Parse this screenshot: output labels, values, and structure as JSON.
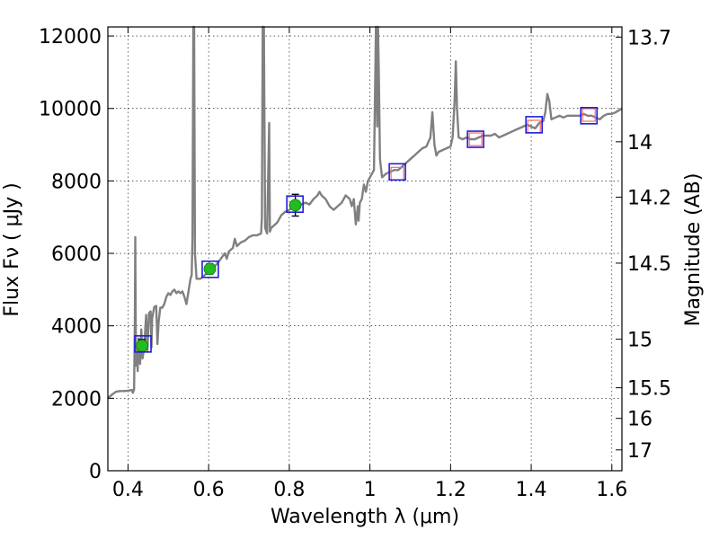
{
  "chart_data": {
    "type": "line",
    "xlabel": "Wavelength  λ (μm)",
    "ylabel_left": "Flux  Fν  ( μJy )",
    "ylabel_right": "Magnitude (AB)",
    "xlim": [
      0.35,
      1.625
    ],
    "ylim": [
      0,
      12250
    ],
    "grid": true,
    "x_ticks": [
      {
        "value": 0.4,
        "label": "0.4"
      },
      {
        "value": 0.6,
        "label": "0.6"
      },
      {
        "value": 0.8,
        "label": "0.8"
      },
      {
        "value": 1.0,
        "label": "1"
      },
      {
        "value": 1.2,
        "label": "1.2"
      },
      {
        "value": 1.4,
        "label": "1.4"
      },
      {
        "value": 1.6,
        "label": "1.6"
      }
    ],
    "y_ticks": [
      {
        "value": 0,
        "label": "0"
      },
      {
        "value": 2000,
        "label": "2000"
      },
      {
        "value": 4000,
        "label": "4000"
      },
      {
        "value": 6000,
        "label": "6000"
      },
      {
        "value": 8000,
        "label": "8000"
      },
      {
        "value": 10000,
        "label": "10000"
      },
      {
        "value": 12000,
        "label": "12000"
      }
    ],
    "right_ticks": [
      {
        "label": "13.7",
        "flux": 11970
      },
      {
        "label": "14",
        "flux": 9080
      },
      {
        "label": "14.2",
        "flux": 7550
      },
      {
        "label": "14.5",
        "flux": 5730
      },
      {
        "label": "15",
        "flux": 3630
      },
      {
        "label": "15.5",
        "flux": 2290
      },
      {
        "label": "16",
        "flux": 1445
      },
      {
        "label": "17",
        "flux": 575
      }
    ],
    "spectrum": {
      "color": "#808080",
      "points": [
        [
          0.35,
          2000
        ],
        [
          0.36,
          2100
        ],
        [
          0.37,
          2180
        ],
        [
          0.38,
          2200
        ],
        [
          0.39,
          2200
        ],
        [
          0.4,
          2210
        ],
        [
          0.41,
          2230
        ],
        [
          0.412,
          2150
        ],
        [
          0.415,
          2250
        ],
        [
          0.417,
          4300
        ],
        [
          0.418,
          6450
        ],
        [
          0.419,
          4100
        ],
        [
          0.42,
          2900
        ],
        [
          0.422,
          3500
        ],
        [
          0.424,
          2750
        ],
        [
          0.426,
          3650
        ],
        [
          0.43,
          2950
        ],
        [
          0.433,
          3900
        ],
        [
          0.436,
          3100
        ],
        [
          0.44,
          3400
        ],
        [
          0.445,
          4300
        ],
        [
          0.448,
          3300
        ],
        [
          0.452,
          4350
        ],
        [
          0.456,
          4400
        ],
        [
          0.458,
          3400
        ],
        [
          0.46,
          4200
        ],
        [
          0.465,
          4520
        ],
        [
          0.47,
          4550
        ],
        [
          0.473,
          3500
        ],
        [
          0.476,
          4100
        ],
        [
          0.48,
          4500
        ],
        [
          0.485,
          4500
        ],
        [
          0.49,
          4600
        ],
        [
          0.495,
          4800
        ],
        [
          0.5,
          4900
        ],
        [
          0.505,
          4850
        ],
        [
          0.51,
          4950
        ],
        [
          0.515,
          5000
        ],
        [
          0.52,
          4900
        ],
        [
          0.525,
          4950
        ],
        [
          0.53,
          4900
        ],
        [
          0.535,
          4950
        ],
        [
          0.54,
          4800
        ],
        [
          0.545,
          4600
        ],
        [
          0.55,
          4950
        ],
        [
          0.555,
          5300
        ],
        [
          0.558,
          5400
        ],
        [
          0.56,
          6500
        ],
        [
          0.562,
          12250
        ],
        [
          0.564,
          12250
        ],
        [
          0.566,
          6000
        ],
        [
          0.57,
          5300
        ],
        [
          0.58,
          5300
        ],
        [
          0.59,
          5400
        ],
        [
          0.6,
          5500
        ],
        [
          0.61,
          5600
        ],
        [
          0.62,
          5700
        ],
        [
          0.63,
          5850
        ],
        [
          0.64,
          6000
        ],
        [
          0.645,
          5850
        ],
        [
          0.65,
          6050
        ],
        [
          0.66,
          6150
        ],
        [
          0.665,
          6400
        ],
        [
          0.67,
          6200
        ],
        [
          0.68,
          6300
        ],
        [
          0.69,
          6350
        ],
        [
          0.7,
          6450
        ],
        [
          0.71,
          6500
        ],
        [
          0.72,
          6500
        ],
        [
          0.73,
          6550
        ],
        [
          0.732,
          7000
        ],
        [
          0.734,
          12250
        ],
        [
          0.737,
          12250
        ],
        [
          0.74,
          6700
        ],
        [
          0.745,
          6550
        ],
        [
          0.75,
          9600
        ],
        [
          0.752,
          6600
        ],
        [
          0.755,
          6700
        ],
        [
          0.76,
          6750
        ],
        [
          0.77,
          6850
        ],
        [
          0.78,
          7050
        ],
        [
          0.79,
          7150
        ],
        [
          0.8,
          7200
        ],
        [
          0.81,
          7300
        ],
        [
          0.82,
          7400
        ],
        [
          0.83,
          7350
        ],
        [
          0.84,
          7400
        ],
        [
          0.85,
          7350
        ],
        [
          0.86,
          7500
        ],
        [
          0.87,
          7600
        ],
        [
          0.875,
          7700
        ],
        [
          0.88,
          7600
        ],
        [
          0.89,
          7500
        ],
        [
          0.9,
          7300
        ],
        [
          0.91,
          7200
        ],
        [
          0.92,
          7300
        ],
        [
          0.93,
          7400
        ],
        [
          0.94,
          7600
        ],
        [
          0.95,
          7500
        ],
        [
          0.955,
          7300
        ],
        [
          0.96,
          7500
        ],
        [
          0.962,
          7200
        ],
        [
          0.965,
          6800
        ],
        [
          0.97,
          7300
        ],
        [
          0.972,
          6900
        ],
        [
          0.975,
          7400
        ],
        [
          0.98,
          7500
        ],
        [
          0.985,
          7900
        ],
        [
          0.99,
          7700
        ],
        [
          0.995,
          8000
        ],
        [
          1.0,
          8100
        ],
        [
          1.005,
          8200
        ],
        [
          1.01,
          8300
        ],
        [
          1.015,
          12250
        ],
        [
          1.018,
          9500
        ],
        [
          1.02,
          12250
        ],
        [
          1.022,
          11000
        ],
        [
          1.025,
          8600
        ],
        [
          1.03,
          8100
        ],
        [
          1.04,
          8200
        ],
        [
          1.05,
          8250
        ],
        [
          1.06,
          8300
        ],
        [
          1.07,
          8300
        ],
        [
          1.08,
          8400
        ],
        [
          1.09,
          8500
        ],
        [
          1.1,
          8600
        ],
        [
          1.11,
          8700
        ],
        [
          1.12,
          8800
        ],
        [
          1.13,
          8900
        ],
        [
          1.14,
          8950
        ],
        [
          1.15,
          9200
        ],
        [
          1.155,
          9900
        ],
        [
          1.16,
          9000
        ],
        [
          1.165,
          8700
        ],
        [
          1.17,
          8800
        ],
        [
          1.18,
          8850
        ],
        [
          1.19,
          8900
        ],
        [
          1.2,
          8950
        ],
        [
          1.205,
          9200
        ],
        [
          1.21,
          10200
        ],
        [
          1.213,
          11300
        ],
        [
          1.216,
          10000
        ],
        [
          1.22,
          9200
        ],
        [
          1.23,
          9150
        ],
        [
          1.24,
          9200
        ],
        [
          1.25,
          9150
        ],
        [
          1.26,
          9150
        ],
        [
          1.27,
          9200
        ],
        [
          1.28,
          9250
        ],
        [
          1.29,
          9250
        ],
        [
          1.3,
          9250
        ],
        [
          1.31,
          9300
        ],
        [
          1.32,
          9200
        ],
        [
          1.33,
          9250
        ],
        [
          1.34,
          9300
        ],
        [
          1.35,
          9350
        ],
        [
          1.36,
          9400
        ],
        [
          1.37,
          9450
        ],
        [
          1.38,
          9500
        ],
        [
          1.39,
          9550
        ],
        [
          1.4,
          9500
        ],
        [
          1.41,
          9450
        ],
        [
          1.42,
          9600
        ],
        [
          1.43,
          9650
        ],
        [
          1.435,
          9900
        ],
        [
          1.44,
          10400
        ],
        [
          1.445,
          10200
        ],
        [
          1.45,
          9700
        ],
        [
          1.46,
          9750
        ],
        [
          1.47,
          9800
        ],
        [
          1.48,
          9750
        ],
        [
          1.49,
          9800
        ],
        [
          1.5,
          9800
        ],
        [
          1.51,
          9800
        ],
        [
          1.52,
          9800
        ],
        [
          1.53,
          9850
        ],
        [
          1.54,
          9800
        ],
        [
          1.55,
          9800
        ],
        [
          1.56,
          9750
        ],
        [
          1.57,
          9700
        ],
        [
          1.58,
          9800
        ],
        [
          1.59,
          9850
        ],
        [
          1.6,
          9850
        ],
        [
          1.61,
          9900
        ],
        [
          1.625,
          10000
        ]
      ]
    },
    "photometry_green": [
      {
        "x": 0.435,
        "y": 3450,
        "err": 170
      },
      {
        "x": 0.603,
        "y": 5570,
        "err": 140
      },
      {
        "x": 0.815,
        "y": 7330,
        "err": 300
      }
    ],
    "model_boxes": [
      {
        "x": 0.437,
        "y": 3500
      },
      {
        "x": 0.604,
        "y": 5560
      },
      {
        "x": 0.814,
        "y": 7360
      },
      {
        "x": 1.068,
        "y": 8250
      },
      {
        "x": 1.262,
        "y": 9150
      },
      {
        "x": 1.407,
        "y": 9550
      },
      {
        "x": 1.543,
        "y": 9800
      }
    ],
    "photometry_open": [
      {
        "x": 1.068,
        "y": 8200
      },
      {
        "x": 1.262,
        "y": 9150
      },
      {
        "x": 1.407,
        "y": 9500
      },
      {
        "x": 1.543,
        "y": 9820
      }
    ]
  }
}
